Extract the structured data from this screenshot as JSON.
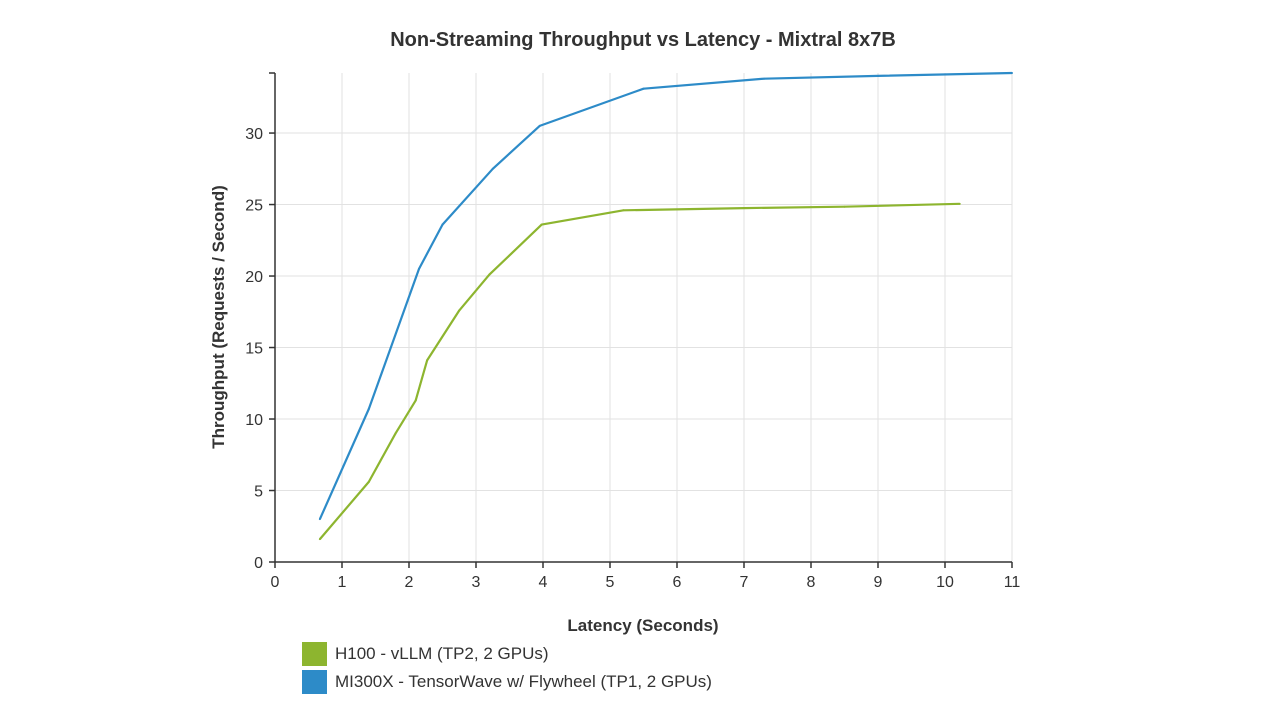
{
  "chart_data": {
    "type": "line",
    "title": "Non-Streaming Throughput vs Latency - Mixtral 8x7B",
    "xlabel": "Latency (Seconds)",
    "ylabel": "Throughput (Requests / Second)",
    "xlim": [
      0,
      11
    ],
    "ylim": [
      0,
      34.2
    ],
    "xticks": [
      0,
      1,
      2,
      3,
      4,
      5,
      6,
      7,
      8,
      9,
      10,
      11
    ],
    "yticks": [
      0,
      5,
      10,
      15,
      20,
      25,
      30
    ],
    "grid": true,
    "legend_position": "bottom-left",
    "series": [
      {
        "name": "H100 - vLLM (TP2, 2 GPUs)",
        "color": "#8db52f",
        "x": [
          0.67,
          1.4,
          1.8,
          2.1,
          2.27,
          2.75,
          3.2,
          3.98,
          5.2,
          7.0,
          8.5,
          10.22
        ],
        "y": [
          1.6,
          5.6,
          9.0,
          11.3,
          14.1,
          17.6,
          20.1,
          23.6,
          24.6,
          24.75,
          24.85,
          25.05
        ]
      },
      {
        "name": "MI300X - TensorWave w/ Flywheel (TP1, 2 GPUs)",
        "color": "#2d8bc8",
        "x": [
          0.67,
          1.4,
          2.15,
          2.5,
          3.25,
          3.95,
          5.5,
          7.3,
          9.0,
          11.0
        ],
        "y": [
          3.0,
          10.7,
          20.5,
          23.6,
          27.5,
          30.5,
          33.1,
          33.8,
          34.0,
          34.2
        ]
      }
    ]
  }
}
